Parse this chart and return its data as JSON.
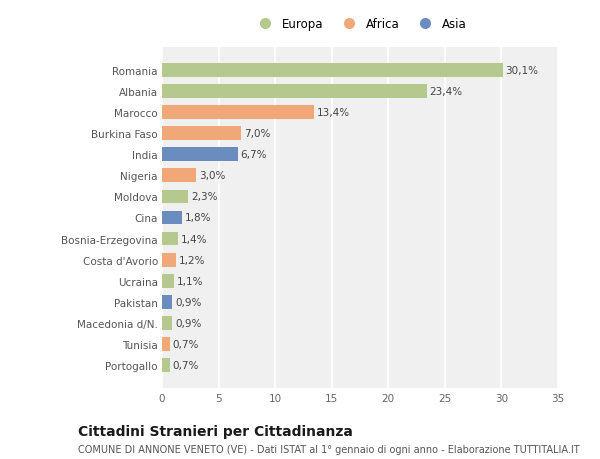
{
  "countries": [
    "Romania",
    "Albania",
    "Marocco",
    "Burkina Faso",
    "India",
    "Nigeria",
    "Moldova",
    "Cina",
    "Bosnia-Erzegovina",
    "Costa d'Avorio",
    "Ucraina",
    "Pakistan",
    "Macedonia d/N.",
    "Tunisia",
    "Portogallo"
  ],
  "values": [
    30.1,
    23.4,
    13.4,
    7.0,
    6.7,
    3.0,
    2.3,
    1.8,
    1.4,
    1.2,
    1.1,
    0.9,
    0.9,
    0.7,
    0.7
  ],
  "labels": [
    "30,1%",
    "23,4%",
    "13,4%",
    "7,0%",
    "6,7%",
    "3,0%",
    "2,3%",
    "1,8%",
    "1,4%",
    "1,2%",
    "1,1%",
    "0,9%",
    "0,9%",
    "0,7%",
    "0,7%"
  ],
  "continents": [
    "Europa",
    "Europa",
    "Africa",
    "Africa",
    "Asia",
    "Africa",
    "Europa",
    "Asia",
    "Europa",
    "Africa",
    "Europa",
    "Asia",
    "Europa",
    "Africa",
    "Europa"
  ],
  "colors": {
    "Europa": "#b5c98e",
    "Africa": "#f0a878",
    "Asia": "#6b8cbf"
  },
  "xlim": [
    0,
    35
  ],
  "xticks": [
    0,
    5,
    10,
    15,
    20,
    25,
    30,
    35
  ],
  "title": "Cittadini Stranieri per Cittadinanza",
  "subtitle": "COMUNE DI ANNONE VENETO (VE) - Dati ISTAT al 1° gennaio di ogni anno - Elaborazione TUTTITALIA.IT",
  "bg_color": "#ffffff",
  "plot_bg_color": "#f0f0f0",
  "grid_color": "#ffffff",
  "bar_height": 0.65,
  "title_fontsize": 10,
  "subtitle_fontsize": 7,
  "label_fontsize": 7.5,
  "tick_fontsize": 7.5,
  "legend_fontsize": 8.5
}
